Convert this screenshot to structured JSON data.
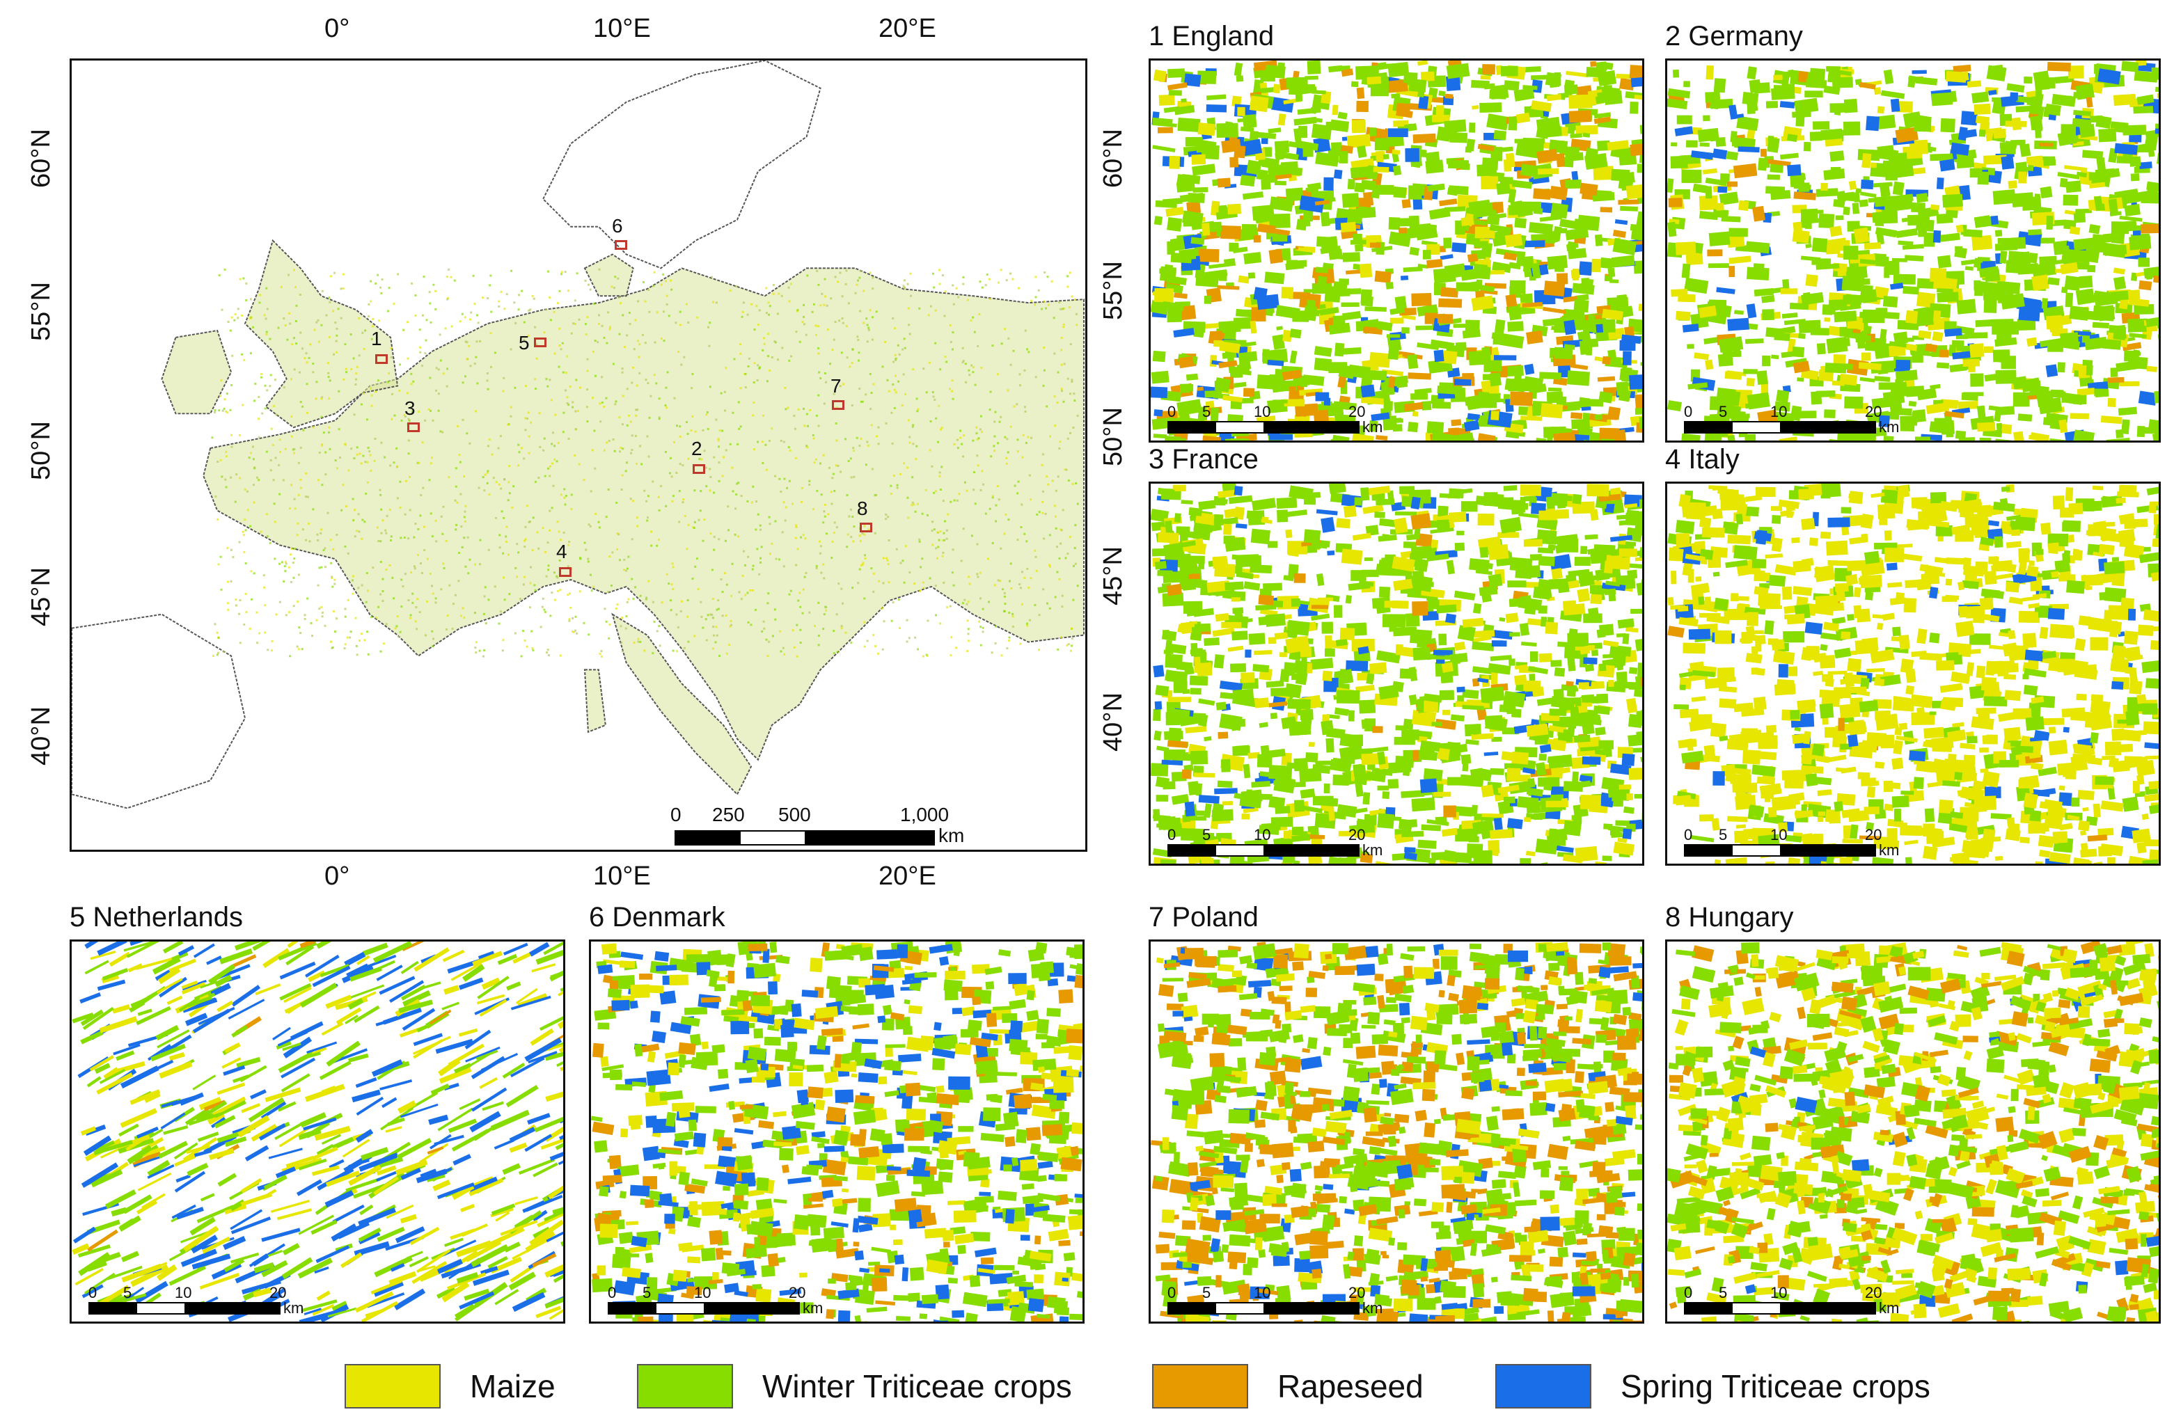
{
  "main_map": {
    "top_lon_labels": [
      "0°",
      "10°E",
      "20°E"
    ],
    "bottom_lon_labels": [
      "0°",
      "10°E",
      "20°E"
    ],
    "left_lat_labels": [
      "60°N",
      "55°N",
      "50°N",
      "45°N",
      "40°N"
    ],
    "right_lat_labels": [
      "60°N",
      "55°N",
      "50°N",
      "45°N",
      "40°N"
    ],
    "scalebar": {
      "numbers": [
        "0",
        "250",
        "500",
        "1,000"
      ],
      "unit": "km"
    },
    "site_markers": [
      "1",
      "2",
      "3",
      "4",
      "5",
      "6",
      "7",
      "8"
    ]
  },
  "insets": [
    {
      "title": "1 England",
      "scale_numbers": [
        "0",
        "5",
        "10",
        "20"
      ],
      "scale_unit": "km"
    },
    {
      "title": "2 Germany",
      "scale_numbers": [
        "0",
        "5",
        "10",
        "20"
      ],
      "scale_unit": "km"
    },
    {
      "title": "3 France",
      "scale_numbers": [
        "0",
        "5",
        "10",
        "20"
      ],
      "scale_unit": "km"
    },
    {
      "title": "4 Italy",
      "scale_numbers": [
        "0",
        "5",
        "10",
        "20"
      ],
      "scale_unit": "km"
    },
    {
      "title": "5 Netherlands",
      "scale_numbers": [
        "0",
        "5",
        "10",
        "20"
      ],
      "scale_unit": "km"
    },
    {
      "title": "6 Denmark",
      "scale_numbers": [
        "0",
        "5",
        "10",
        "20"
      ],
      "scale_unit": "km"
    },
    {
      "title": "7 Poland",
      "scale_numbers": [
        "0",
        "5",
        "10",
        "20"
      ],
      "scale_unit": "km"
    },
    {
      "title": "8 Hungary",
      "scale_numbers": [
        "0",
        "5",
        "10",
        "20"
      ],
      "scale_unit": "km"
    }
  ],
  "legend": [
    {
      "label": "Maize",
      "color": "#e6e600"
    },
    {
      "label": "Winter Triticeae crops",
      "color": "#88dd00"
    },
    {
      "label": "Rapeseed",
      "color": "#e69a00"
    },
    {
      "label": "Spring Triticeae crops",
      "color": "#1a6fe8"
    }
  ],
  "colors": {
    "coastline": "#555555",
    "cropland_tint": "#d9e39a",
    "marker": "#c0392b"
  }
}
